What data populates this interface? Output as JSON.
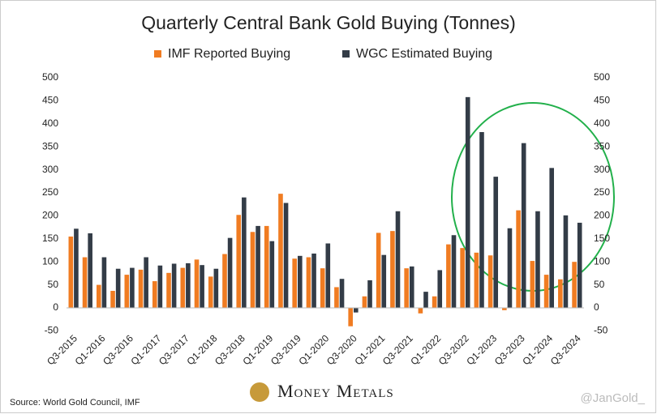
{
  "chart_data": {
    "type": "bar",
    "title": "Quarterly Central Bank Gold Buying (Tonnes)",
    "categories": [
      "Q3-2015",
      null,
      "Q1-2016",
      null,
      "Q3-2016",
      null,
      "Q1-2017",
      null,
      "Q3-2017",
      null,
      "Q1-2018",
      null,
      "Q3-2018",
      null,
      "Q1-2019",
      null,
      "Q3-2019",
      null,
      "Q1-2020",
      null,
      "Q3-2020",
      null,
      "Q1-2021",
      null,
      "Q3-2021",
      null,
      "Q1-2022",
      null,
      "Q3-2022",
      null,
      "Q1-2023",
      null,
      "Q3-2023",
      null,
      "Q1-2024",
      null,
      "Q3-2024"
    ],
    "series": [
      {
        "name": "IMF Reported Buying",
        "color": "#f07c22",
        "values": [
          155,
          110,
          50,
          37,
          72,
          83,
          58,
          76,
          87,
          105,
          68,
          117,
          202,
          165,
          178,
          248,
          107,
          110,
          86,
          45,
          -40,
          25,
          163,
          167,
          86,
          -12,
          25,
          138,
          130,
          120,
          114,
          -5,
          212,
          102,
          72,
          62,
          100
        ]
      },
      {
        "name": "WGC Estimated Buying",
        "color": "#333c47",
        "values": [
          172,
          162,
          110,
          85,
          87,
          110,
          92,
          96,
          97,
          93,
          85,
          152,
          240,
          178,
          145,
          228,
          113,
          118,
          140,
          63,
          -10,
          60,
          115,
          210,
          90,
          35,
          82,
          158,
          458,
          382,
          285,
          173,
          358,
          210,
          304,
          201,
          185
        ]
      }
    ],
    "ylim": [
      -50,
      500
    ],
    "yticks": [
      -50,
      0,
      50,
      100,
      150,
      200,
      250,
      300,
      350,
      400,
      450,
      500
    ],
    "y2lim": [
      -50,
      500
    ],
    "y2ticks": [
      -50,
      0,
      50,
      100,
      150,
      200,
      250,
      300,
      350,
      400,
      450,
      500
    ],
    "grid": false,
    "legend": "top",
    "source": "Source: World Gold Council, IMF",
    "logo": "Money Metals",
    "watermark": "@JanGold_"
  }
}
